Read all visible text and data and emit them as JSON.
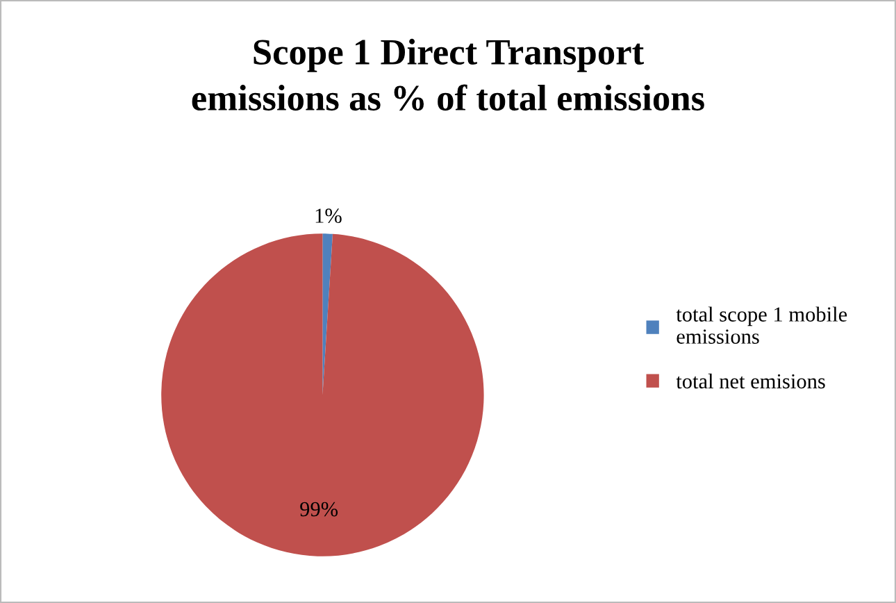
{
  "chart_data": {
    "type": "pie",
    "title": "Scope 1 Direct Transport\nemissions as % of total emissions",
    "categories": [
      "total scope 1 mobile\nemissions",
      "total net emisions"
    ],
    "values": [
      1,
      99
    ],
    "colors": [
      "#4f81bd",
      "#c0504d"
    ],
    "value_labels": [
      "1%",
      "99%"
    ],
    "legend": "right"
  }
}
